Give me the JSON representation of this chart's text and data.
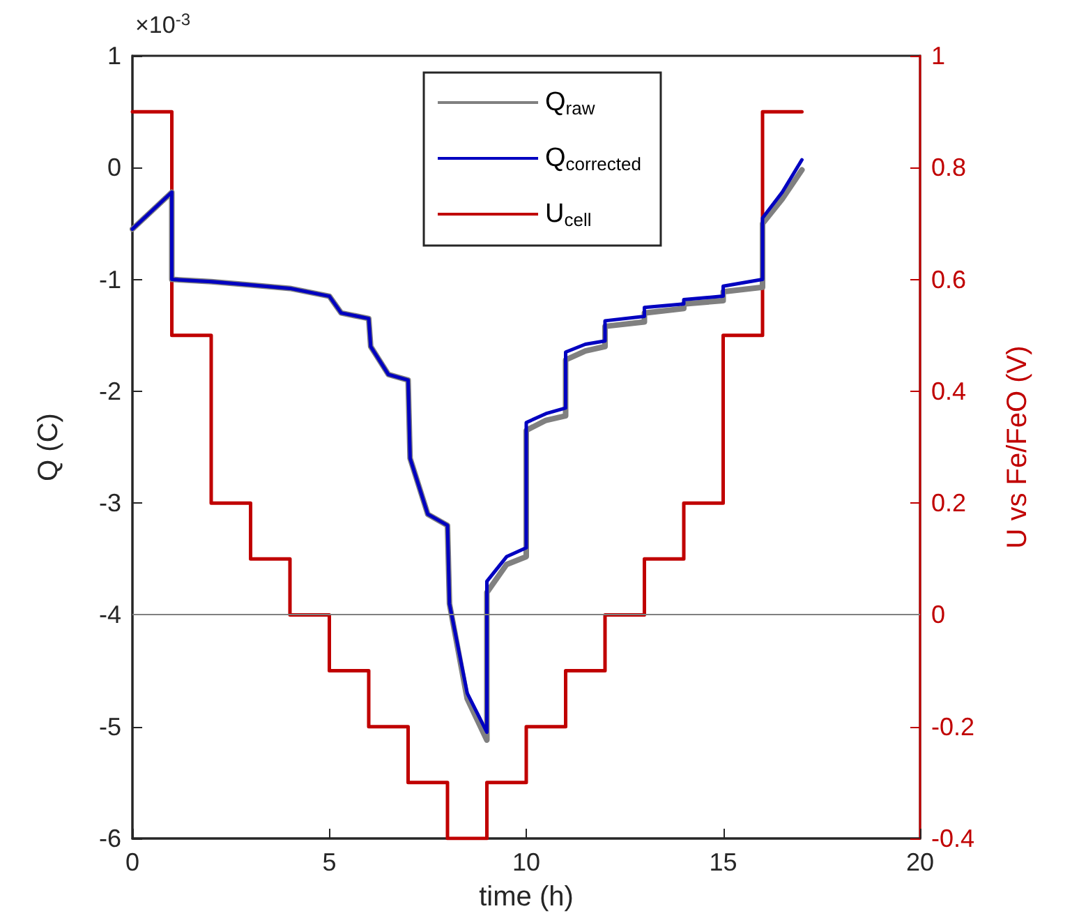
{
  "chart_data": {
    "type": "line",
    "xlabel": "time (h)",
    "ylabel": "Q (C)",
    "y2label": "U vs Fe/FeO (V)",
    "annotations": [
      "×10$^{-3}$"
    ],
    "xlim": [
      0,
      20
    ],
    "xticks": [
      0,
      5,
      10,
      15,
      20
    ],
    "ylim": [
      -6,
      1
    ],
    "yticks": [
      -6,
      -5,
      -4,
      -3,
      -2,
      -1,
      0,
      1
    ],
    "y2lim": [
      -0.4,
      1
    ],
    "y2ticks": [
      -0.4,
      -0.2,
      0,
      0.2,
      0.4,
      0.6,
      0.8,
      1
    ],
    "grid": false,
    "legend": "top",
    "line_style": "solid",
    "marker": "none",
    "ref_lines": [
      {
        "axis": "y",
        "value": -4,
        "color": "#808080"
      }
    ],
    "series": [
      {
        "name": "Q$_{raw}$",
        "color": "#808080",
        "x": [
          0,
          1,
          1,
          2,
          3,
          4,
          5,
          5.3,
          6,
          6.05,
          6.5,
          7,
          7.05,
          7.5,
          8,
          8.05,
          8.5,
          9,
          9,
          9.5,
          10,
          10,
          10.5,
          11,
          11,
          11.5,
          12,
          12,
          13,
          13,
          14,
          14,
          15,
          15,
          16,
          16,
          16.5,
          17
        ],
        "values": [
          -0.55,
          -0.22,
          -1.0,
          -1.02,
          -1.05,
          -1.08,
          -1.15,
          -1.3,
          -1.35,
          -1.6,
          -1.85,
          -1.9,
          -2.6,
          -3.1,
          -3.2,
          -3.9,
          -4.75,
          -5.12,
          -3.8,
          -3.55,
          -3.48,
          -2.35,
          -2.26,
          -2.22,
          -1.72,
          -1.64,
          -1.6,
          -1.42,
          -1.38,
          -1.3,
          -1.26,
          -1.22,
          -1.19,
          -1.11,
          -1.07,
          -0.5,
          -0.28,
          -0.02
        ]
      },
      {
        "name": "Q$_{corrected}$",
        "color": "#0000c0",
        "x": [
          0,
          1,
          1,
          2,
          3,
          4,
          5,
          5.3,
          6,
          6.05,
          6.5,
          7,
          7.05,
          7.5,
          8,
          8.05,
          8.5,
          9,
          9,
          9.5,
          10,
          10,
          10.5,
          11,
          11,
          11.5,
          12,
          12,
          13,
          13,
          14,
          14,
          15,
          15,
          16,
          16,
          16.5,
          17
        ],
        "values": [
          -0.55,
          -0.22,
          -1.0,
          -1.02,
          -1.05,
          -1.08,
          -1.15,
          -1.3,
          -1.35,
          -1.6,
          -1.85,
          -1.9,
          -2.6,
          -3.1,
          -3.2,
          -3.9,
          -4.7,
          -5.05,
          -3.7,
          -3.48,
          -3.4,
          -2.28,
          -2.2,
          -2.15,
          -1.65,
          -1.58,
          -1.55,
          -1.37,
          -1.33,
          -1.25,
          -1.22,
          -1.18,
          -1.15,
          -1.06,
          -1.0,
          -0.45,
          -0.22,
          0.07
        ]
      },
      {
        "name": "U$_{cell}$",
        "type": "step",
        "axis": "y2",
        "color": "#c00000",
        "x": [
          0,
          1,
          2,
          3,
          4,
          5,
          6,
          7,
          8,
          9,
          10,
          11,
          12,
          13,
          14,
          15,
          16,
          17
        ],
        "values": [
          0.9,
          0.5,
          0.2,
          0.1,
          0,
          -0.1,
          -0.2,
          -0.3,
          -0.4,
          -0.3,
          -0.2,
          -0.1,
          0,
          0.1,
          0.2,
          0.5,
          0.9,
          0.9
        ]
      }
    ]
  }
}
